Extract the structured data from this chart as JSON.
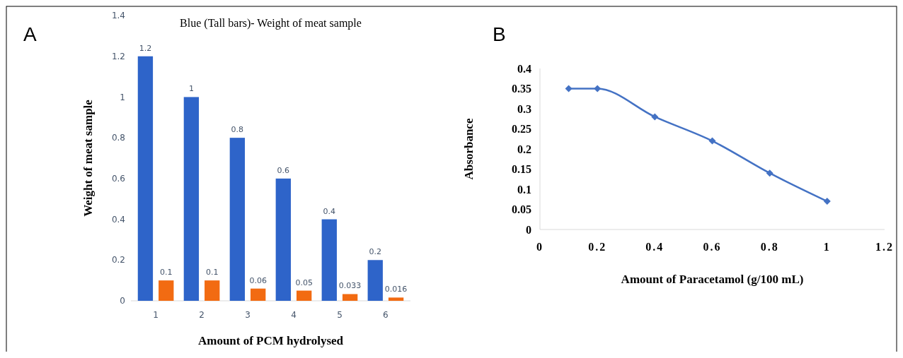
{
  "chart_data": [
    {
      "type": "bar",
      "title": "Blue (Tall bars)- Weight of meat sample",
      "xlabel": "Amount of PCM hydrolysed",
      "ylabel": "Weight of meat sample",
      "categories": [
        "1",
        "2",
        "3",
        "4",
        "5",
        "6"
      ],
      "series": [
        {
          "color": "#2e64c9",
          "values": [
            1.2,
            1,
            0.8,
            0.6,
            0.4,
            0.2
          ]
        },
        {
          "color": "#f26b12",
          "values": [
            0.1,
            0.1,
            0.06,
            0.05,
            0.033,
            0.016
          ]
        }
      ],
      "ylim": [
        0,
        1.4
      ],
      "yticks": [
        0,
        0.2,
        0.4,
        0.6,
        0.8,
        1,
        1.2,
        1.4
      ],
      "data_labels": true,
      "annotations": [
        "A"
      ]
    },
    {
      "type": "line",
      "xlabel": "Amount of Paracetamol (g/100 mL)",
      "ylabel": "Absorbance",
      "x": [
        0.1,
        0.2,
        0.4,
        0.6,
        0.8,
        1
      ],
      "series": [
        {
          "color": "#4472c4",
          "values": [
            0.35,
            0.35,
            0.28,
            0.22,
            0.14,
            0.07
          ]
        }
      ],
      "xlim": [
        0,
        1.2
      ],
      "xticks": [
        0,
        0.2,
        0.4,
        0.6,
        0.8,
        1,
        1.2
      ],
      "ylim": [
        0,
        0.4
      ],
      "yticks": [
        0,
        0.05,
        0.1,
        0.15,
        0.2,
        0.25,
        0.3,
        0.35,
        0.4
      ],
      "marker": "diamond",
      "line_style": "solid",
      "annotations": [
        "B"
      ]
    }
  ]
}
